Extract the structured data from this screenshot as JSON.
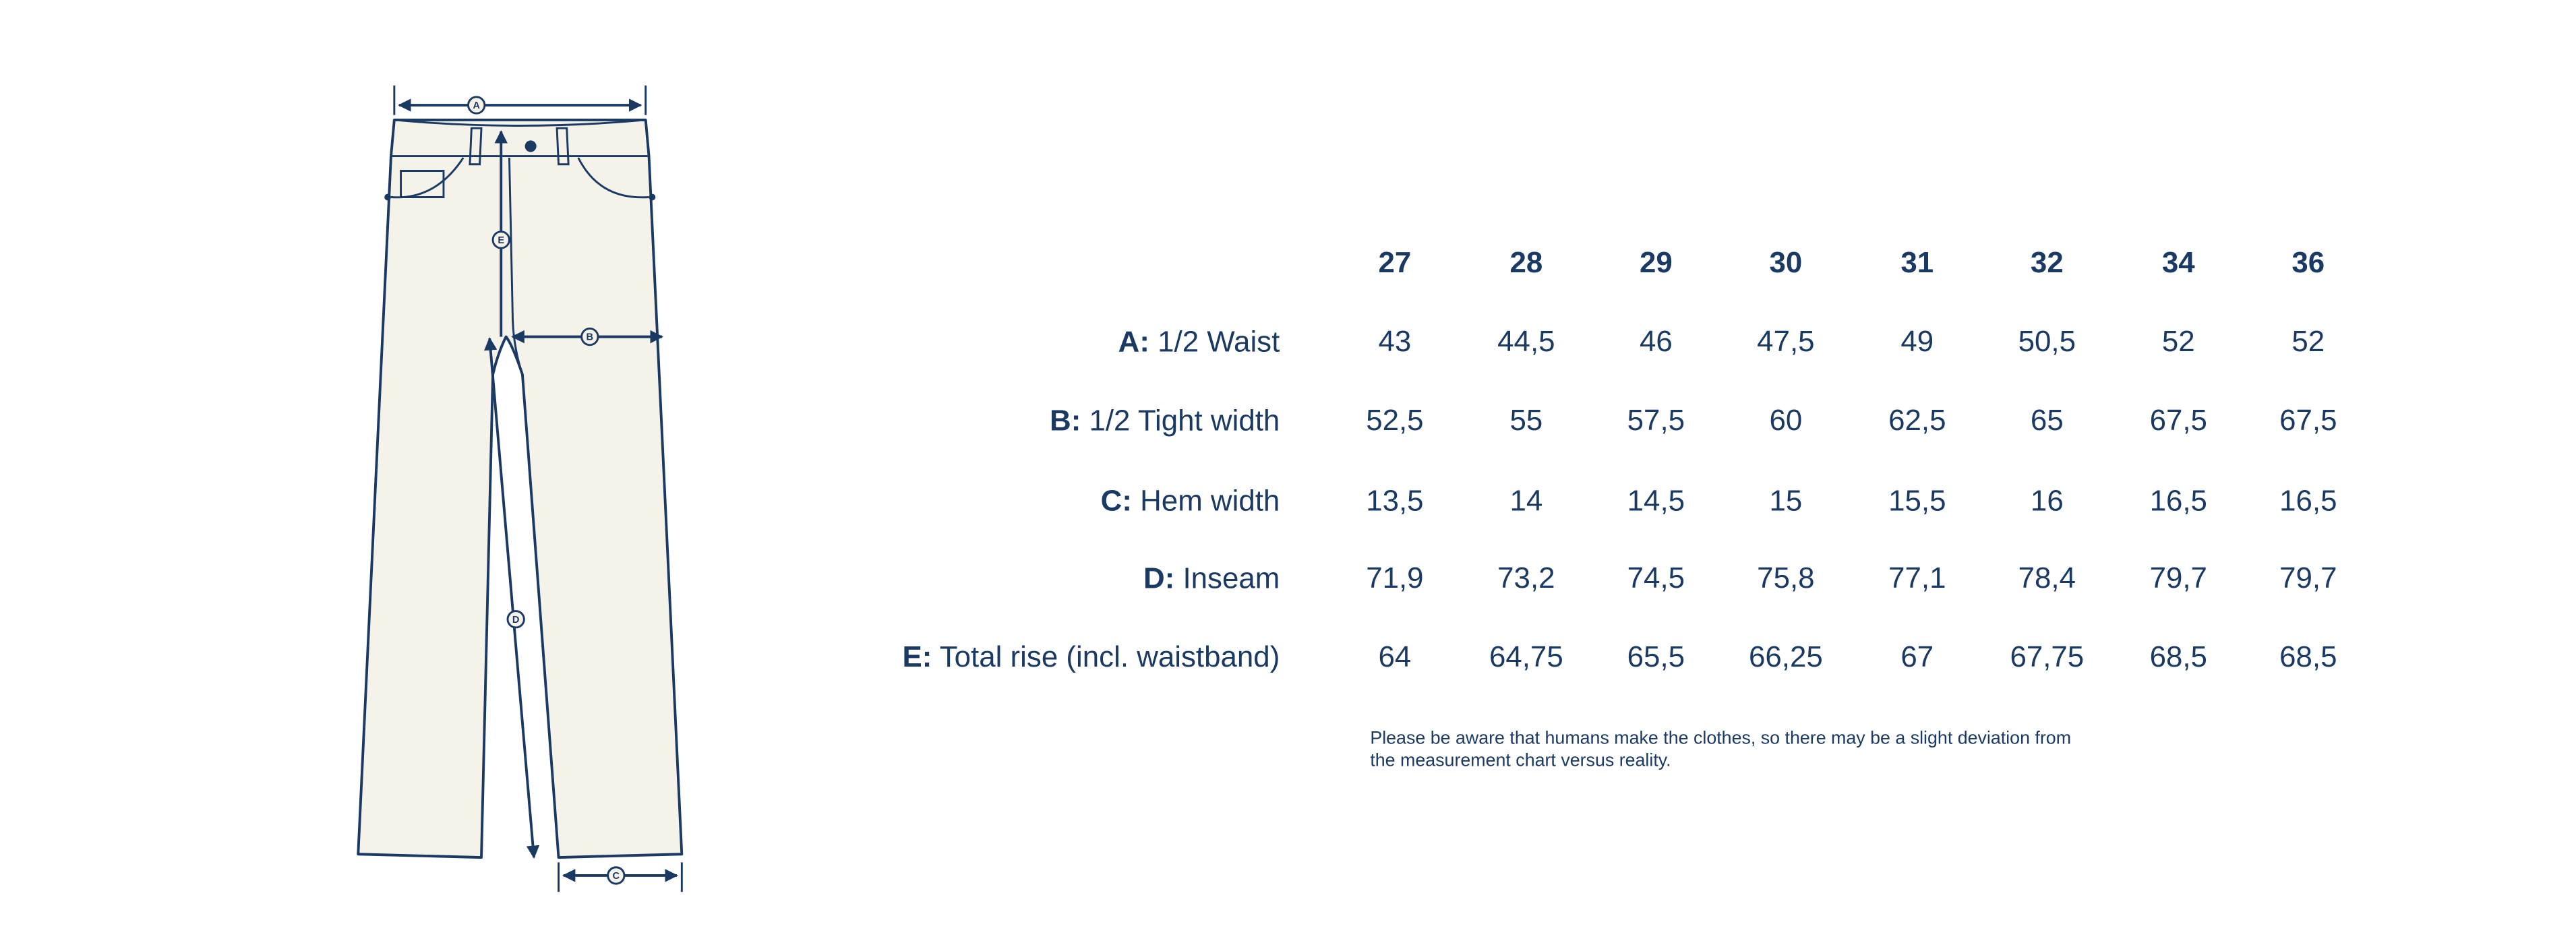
{
  "diagram": {
    "labels": [
      "A",
      "B",
      "C",
      "D",
      "E"
    ]
  },
  "table": {
    "headers": [
      "27",
      "28",
      "29",
      "30",
      "31",
      "32",
      "34",
      "36"
    ],
    "rows": [
      {
        "key": "A:",
        "label": "1/2 Waist",
        "values": [
          "43",
          "44,5",
          "46",
          "47,5",
          "49",
          "50,5",
          "52",
          "52"
        ]
      },
      {
        "key": "B:",
        "label": "1/2 Tight width",
        "values": [
          "52,5",
          "55",
          "57,5",
          "60",
          "62,5",
          "65",
          "67,5",
          "67,5"
        ]
      },
      {
        "key": "C:",
        "label": "Hem width",
        "values": [
          "13,5",
          "14",
          "14,5",
          "15",
          "15,5",
          "16",
          "16,5",
          "16,5"
        ]
      },
      {
        "key": "D:",
        "label": "Inseam",
        "values": [
          "71,9",
          "73,2",
          "74,5",
          "75,8",
          "77,1",
          "78,4",
          "79,7",
          "79,7"
        ]
      },
      {
        "key": "E:",
        "label": "Total rise (incl. waistband)",
        "values": [
          "64",
          "64,75",
          "65,5",
          "66,25",
          "67",
          "67,75",
          "68,5",
          "68,5"
        ]
      }
    ]
  },
  "note": [
    "Please be aware that humans make the clothes, so there may be a slight deviation from",
    "the measurement chart versus reality."
  ]
}
